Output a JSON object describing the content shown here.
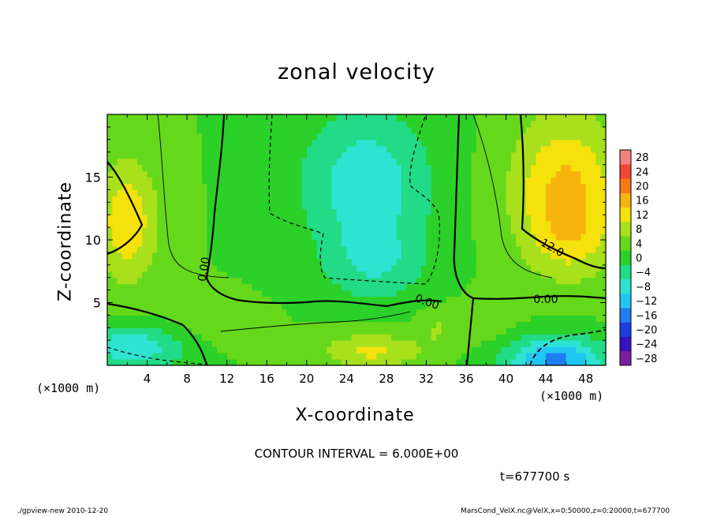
{
  "chart_data": {
    "type": "heatmap",
    "title": "zonal velocity",
    "xlabel": "X-coordinate",
    "ylabel": "Z-coordinate",
    "x_unit": "(×1000 m)",
    "y_unit": "(×1000 m)",
    "xlim": [
      0,
      50
    ],
    "ylim": [
      0,
      20
    ],
    "x_ticks": [
      4,
      8,
      12,
      16,
      20,
      24,
      28,
      32,
      36,
      40,
      44,
      48
    ],
    "y_ticks": [
      5,
      10,
      15
    ],
    "colorbar": {
      "levels": [
        -28,
        -24,
        -20,
        -16,
        -12,
        -8,
        -4,
        0,
        4,
        8,
        12,
        16,
        20,
        24,
        28
      ],
      "colors": [
        "#7a1fa0",
        "#3a13c0",
        "#1f3ddc",
        "#1f7df0",
        "#21c7f2",
        "#2ee3d2",
        "#22db86",
        "#2bd028",
        "#66d81b",
        "#a8e01c",
        "#f5e10c",
        "#f7b40d",
        "#f57a14",
        "#f04636",
        "#f58080"
      ]
    },
    "contour_interval": 6.0,
    "contour_labels": [
      "0.00",
      "0.00",
      "0.00",
      "12.0"
    ]
  },
  "annotations": {
    "contour_interval_text": "CONTOUR INTERVAL = 6.000E+00",
    "time_text": "t=677700 s",
    "footer_left": "./gpview-new  2010-12-20",
    "footer_right": "MarsCond_VelX.nc@VelX,x=0:50000,z=0:20000,t=677700"
  }
}
